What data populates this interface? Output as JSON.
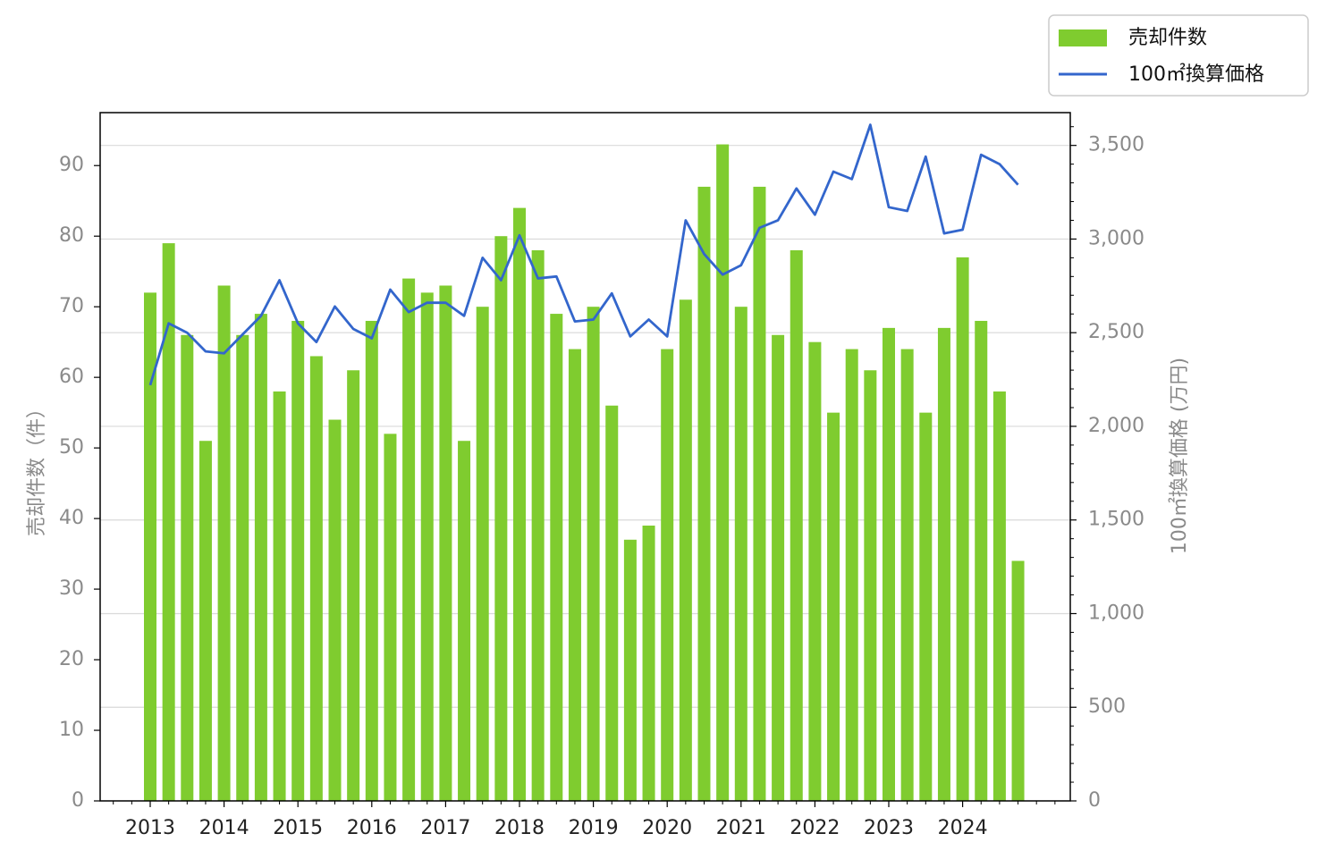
{
  "chart_data": {
    "type": "bar",
    "categories": [
      "2013Q1",
      "2013Q2",
      "2013Q3",
      "2013Q4",
      "2014Q1",
      "2014Q2",
      "2014Q3",
      "2014Q4",
      "2015Q1",
      "2015Q2",
      "2015Q3",
      "2015Q4",
      "2016Q1",
      "2016Q2",
      "2016Q3",
      "2016Q4",
      "2017Q1",
      "2017Q2",
      "2017Q3",
      "2017Q4",
      "2018Q1",
      "2018Q2",
      "2018Q3",
      "2018Q4",
      "2019Q1",
      "2019Q2",
      "2019Q3",
      "2019Q4",
      "2020Q1",
      "2020Q2",
      "2020Q3",
      "2020Q4",
      "2021Q1",
      "2021Q2",
      "2021Q3",
      "2021Q4",
      "2022Q1",
      "2022Q2",
      "2022Q3",
      "2022Q4",
      "2023Q1",
      "2023Q2",
      "2023Q3",
      "2023Q4",
      "2024Q1",
      "2024Q2",
      "2024Q3",
      "2024Q4"
    ],
    "x_tick_labels": [
      "2013",
      "2014",
      "2015",
      "2016",
      "2017",
      "2018",
      "2019",
      "2020",
      "2021",
      "2022",
      "2023",
      "2024"
    ],
    "series": [
      {
        "name": "売却件数",
        "type": "bar",
        "axis": "left",
        "color": "#7fcc2f",
        "values": [
          72,
          79,
          66,
          51,
          73,
          66,
          69,
          58,
          68,
          63,
          54,
          61,
          68,
          52,
          74,
          72,
          73,
          51,
          70,
          80,
          84,
          78,
          69,
          64,
          70,
          56,
          37,
          39,
          64,
          71,
          87,
          93,
          70,
          87,
          66,
          78,
          65,
          55,
          64,
          61,
          67,
          64,
          55,
          67,
          77,
          68,
          58,
          34
        ]
      },
      {
        "name": "100㎡換算価格",
        "type": "line",
        "axis": "right",
        "color": "#3366cc",
        "values": [
          2220,
          2550,
          2500,
          2400,
          2390,
          2490,
          2590,
          2780,
          2550,
          2450,
          2640,
          2520,
          2470,
          2730,
          2610,
          2660,
          2660,
          2590,
          2900,
          2780,
          3020,
          2790,
          2800,
          2560,
          2570,
          2710,
          2480,
          2570,
          2480,
          3100,
          2920,
          2810,
          2860,
          3060,
          3100,
          3270,
          3130,
          3360,
          3320,
          3610,
          3170,
          3150,
          3440,
          3030,
          3050,
          3450,
          3400,
          3290
        ]
      }
    ],
    "y_left": {
      "label": "売却件数（件）",
      "ylim": [
        0,
        97.5
      ],
      "ticks": [
        0,
        10,
        20,
        30,
        40,
        50,
        60,
        70,
        80,
        90
      ]
    },
    "y_right": {
      "label": "100㎡換算価格 (万円)",
      "ylim": [
        0,
        3675
      ],
      "ticks": [
        0,
        500,
        1000,
        1500,
        2000,
        2500,
        3000,
        3500
      ],
      "tick_labels": [
        "0",
        "500",
        "1,000",
        "1,500",
        "2,000",
        "2,500",
        "3,000",
        "3,500"
      ]
    },
    "grid": "horizontal (right axis ticks)",
    "legend_placement": "top-right, outside plot"
  },
  "legend": {
    "bar_label": "売却件数",
    "line_label": "100㎡換算価格"
  }
}
